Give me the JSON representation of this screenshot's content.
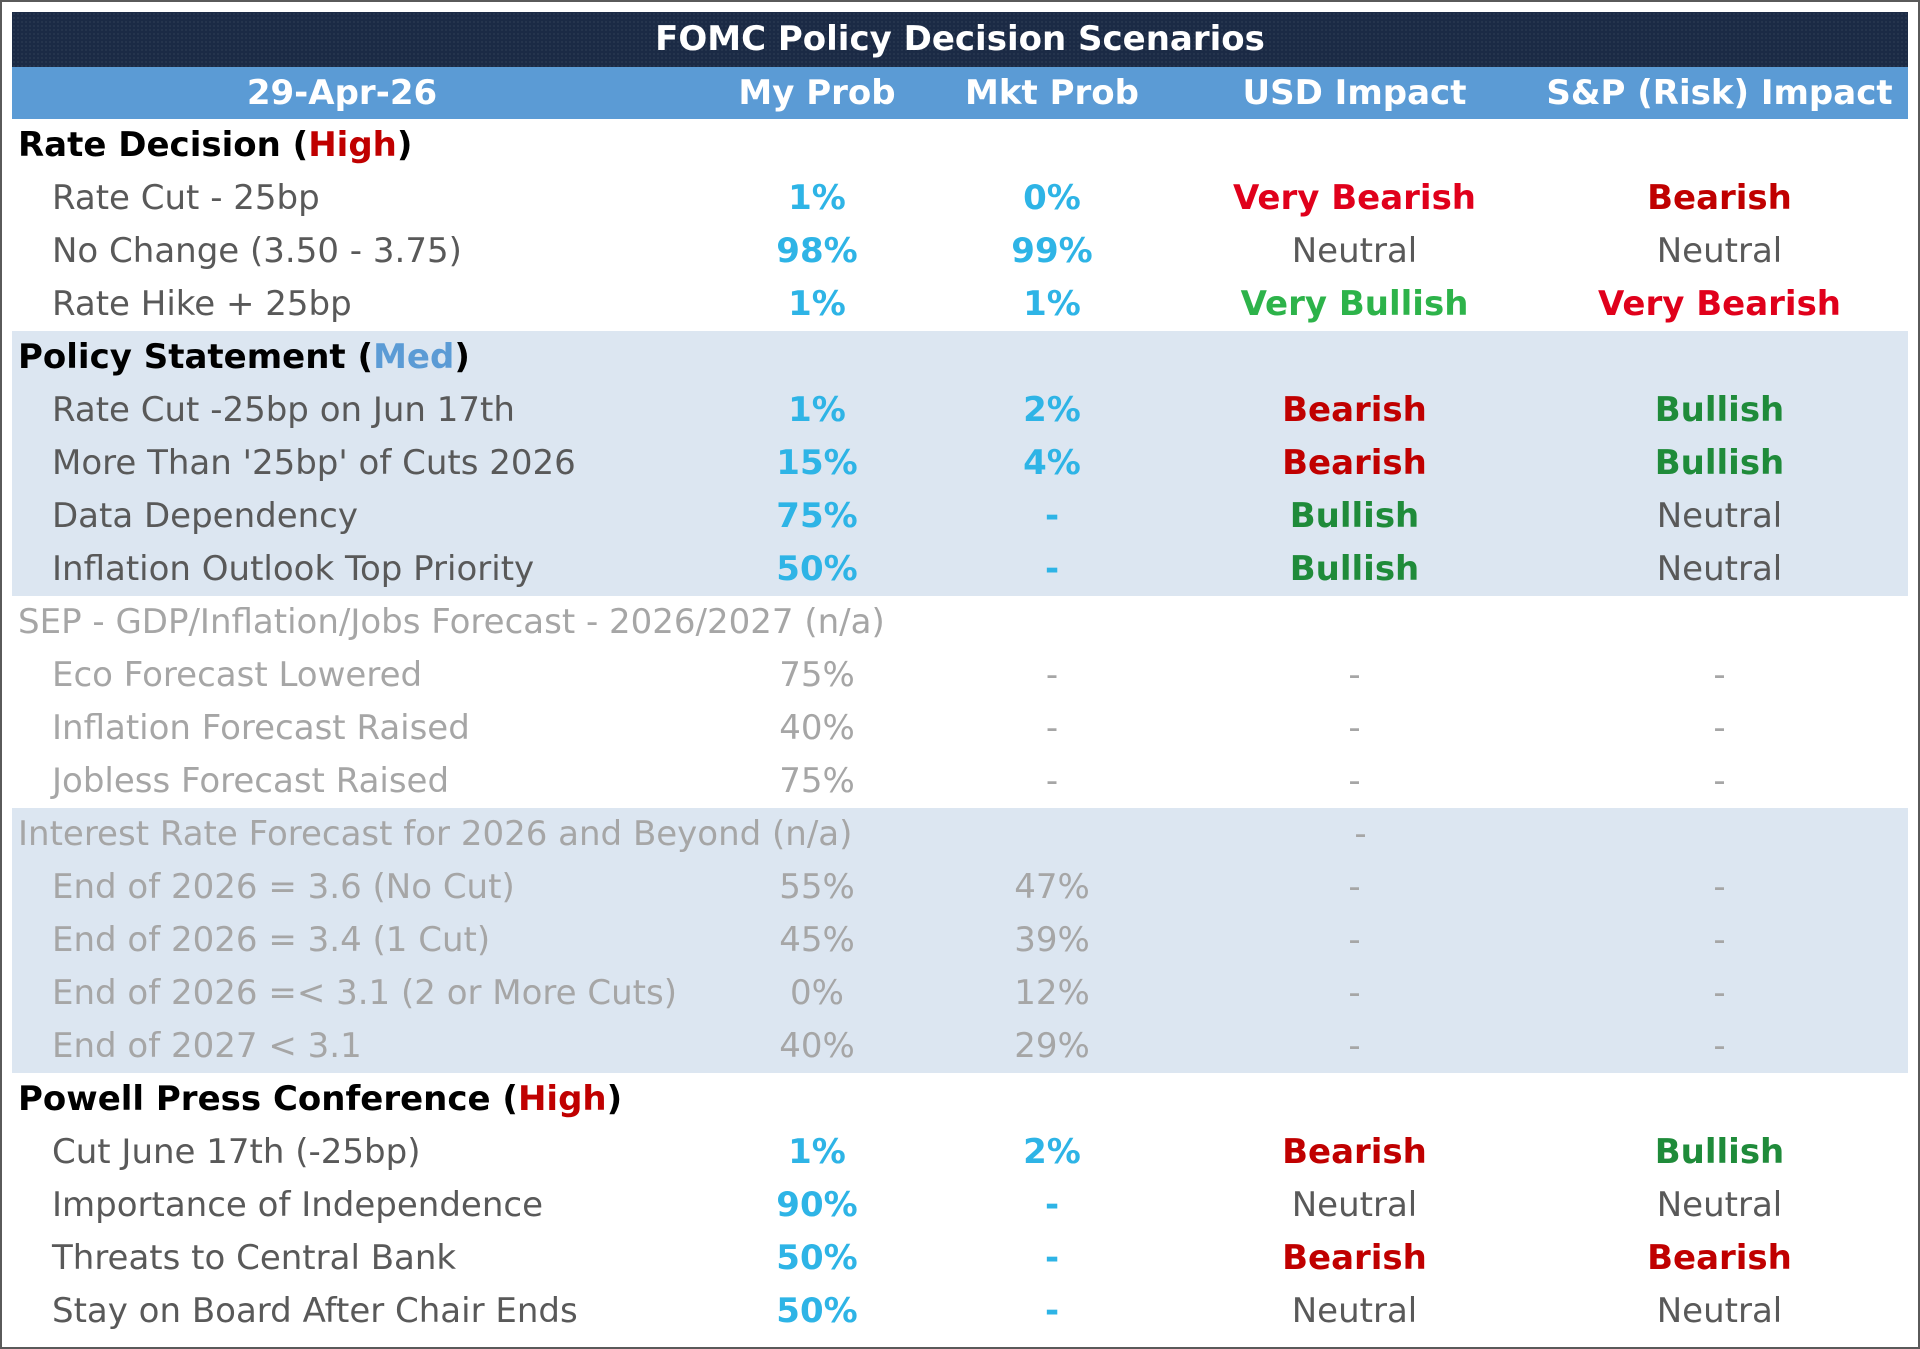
{
  "title": "FOMC Policy Decision Scenarios",
  "header": {
    "date": "29-Apr-26",
    "my_prob": "My Prob",
    "mkt_prob": "Mkt Prob",
    "usd": "USD Impact",
    "sp": "S&P (Risk) Impact"
  },
  "colors": {
    "title_bg": "#1b2a45",
    "header_bg": "#5b9bd5",
    "shade": "#dce6f1",
    "prob": "#2eb4e6",
    "bearish": "#c00000",
    "bullish": "#1f8b3a"
  },
  "sections": [
    {
      "name": "Rate Decision",
      "importance": "High",
      "rows": [
        {
          "label": "Rate Cut - 25bp",
          "my": "1%",
          "mkt": "0%",
          "usd": "Very Bearish",
          "sp": "Bearish"
        },
        {
          "label": "No Change (3.50 - 3.75)",
          "my": "98%",
          "mkt": "99%",
          "usd": "Neutral",
          "sp": "Neutral"
        },
        {
          "label": "Rate Hike + 25bp",
          "my": "1%",
          "mkt": "1%",
          "usd": "Very Bullish",
          "sp": "Very Bearish"
        }
      ]
    },
    {
      "name": "Policy Statement",
      "importance": "Med",
      "rows": [
        {
          "label": "Rate Cut -25bp on Jun 17th",
          "my": "1%",
          "mkt": "2%",
          "usd": "Bearish",
          "sp": "Bullish"
        },
        {
          "label": "More Than '25bp' of Cuts 2026",
          "my": "15%",
          "mkt": "4%",
          "usd": "Bearish",
          "sp": "Bullish"
        },
        {
          "label": "Data Dependency",
          "my": "75%",
          "mkt": "-",
          "usd": "Bullish",
          "sp": "Neutral"
        },
        {
          "label": "Inflation Outlook Top Priority",
          "my": "50%",
          "mkt": "-",
          "usd": "Bullish",
          "sp": "Neutral"
        }
      ]
    },
    {
      "name": "SEP - GDP/Inflation/Jobs Forecast - 2026/2027 (n/a)",
      "rows": [
        {
          "label": "Eco Forecast Lowered",
          "my": "75%",
          "mkt": "-",
          "usd": "-",
          "sp": "-"
        },
        {
          "label": "Inflation Forecast Raised",
          "my": "40%",
          "mkt": "-",
          "usd": "-",
          "sp": "-"
        },
        {
          "label": "Jobless Forecast Raised",
          "my": "75%",
          "mkt": "-",
          "usd": "-",
          "sp": "-"
        }
      ]
    },
    {
      "name": "Interest Rate Forecast for 2026 and Beyond (n/a)",
      "title_usd": "-",
      "rows": [
        {
          "label": "End of 2026 = 3.6 (No Cut)",
          "my": "55%",
          "mkt": "47%",
          "usd": "-",
          "sp": "-"
        },
        {
          "label": "End of 2026 = 3.4 (1 Cut)",
          "my": "45%",
          "mkt": "39%",
          "usd": "-",
          "sp": "-"
        },
        {
          "label": "End of 2026 =< 3.1 (2 or More Cuts)",
          "my": "0%",
          "mkt": "12%",
          "usd": "-",
          "sp": "-"
        },
        {
          "label": "End of 2027 < 3.1",
          "my": "40%",
          "mkt": "29%",
          "usd": "-",
          "sp": "-"
        }
      ]
    },
    {
      "name": "Powell Press Conference",
      "importance": "High",
      "rows": [
        {
          "label": "Cut June 17th (-25bp)",
          "my": "1%",
          "mkt": "2%",
          "usd": "Bearish",
          "sp": "Bullish"
        },
        {
          "label": "Importance of Independence",
          "my": "90%",
          "mkt": "-",
          "usd": "Neutral",
          "sp": "Neutral"
        },
        {
          "label": "Threats to Central Bank",
          "my": "50%",
          "mkt": "-",
          "usd": "Bearish",
          "sp": "Bearish"
        },
        {
          "label": "Stay on Board After Chair Ends",
          "my": "50%",
          "mkt": "-",
          "usd": "Neutral",
          "sp": "Neutral"
        }
      ]
    }
  ]
}
